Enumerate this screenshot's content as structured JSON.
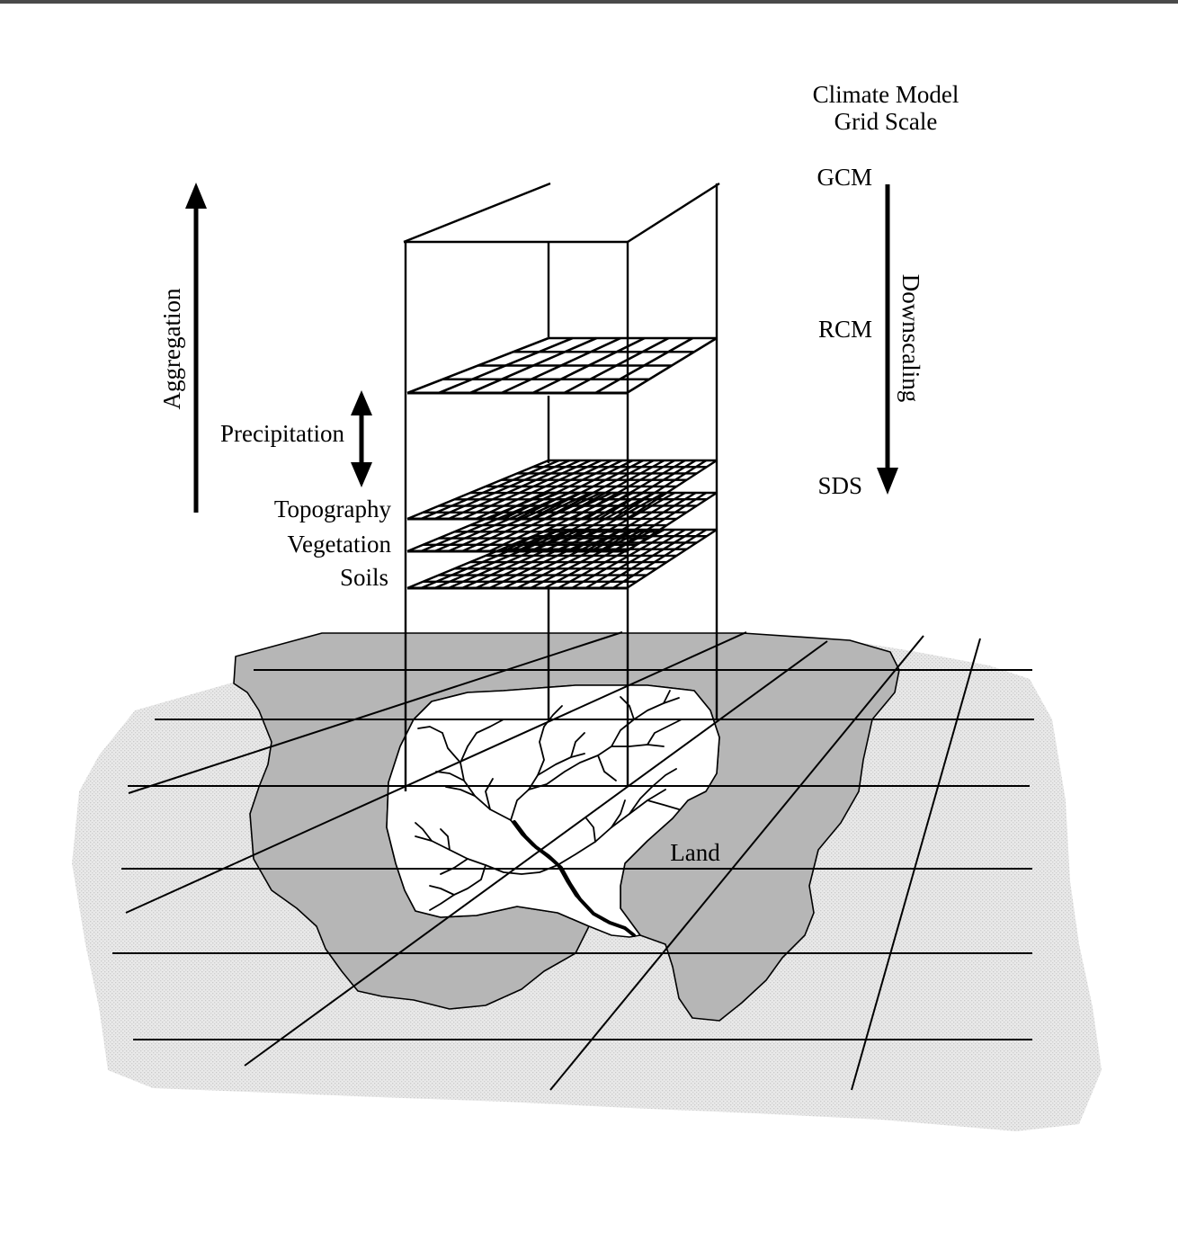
{
  "header": {
    "line1": "Climate Model",
    "line2": "Grid Scale"
  },
  "scales": {
    "gcm": "GCM",
    "rcm": "RCM",
    "sds": "SDS",
    "downscaling": "Downscaling"
  },
  "left": {
    "aggregation": "Aggregation",
    "precipitation": "Precipitation",
    "topography": "Topography",
    "vegetation": "Vegetation",
    "soils": "Soils"
  },
  "map": {
    "land": "Land"
  },
  "colors": {
    "land": "#b5b5b5",
    "background_shading": "#e2e2e2",
    "watershed": "#ffffff",
    "lines": "#000000"
  }
}
